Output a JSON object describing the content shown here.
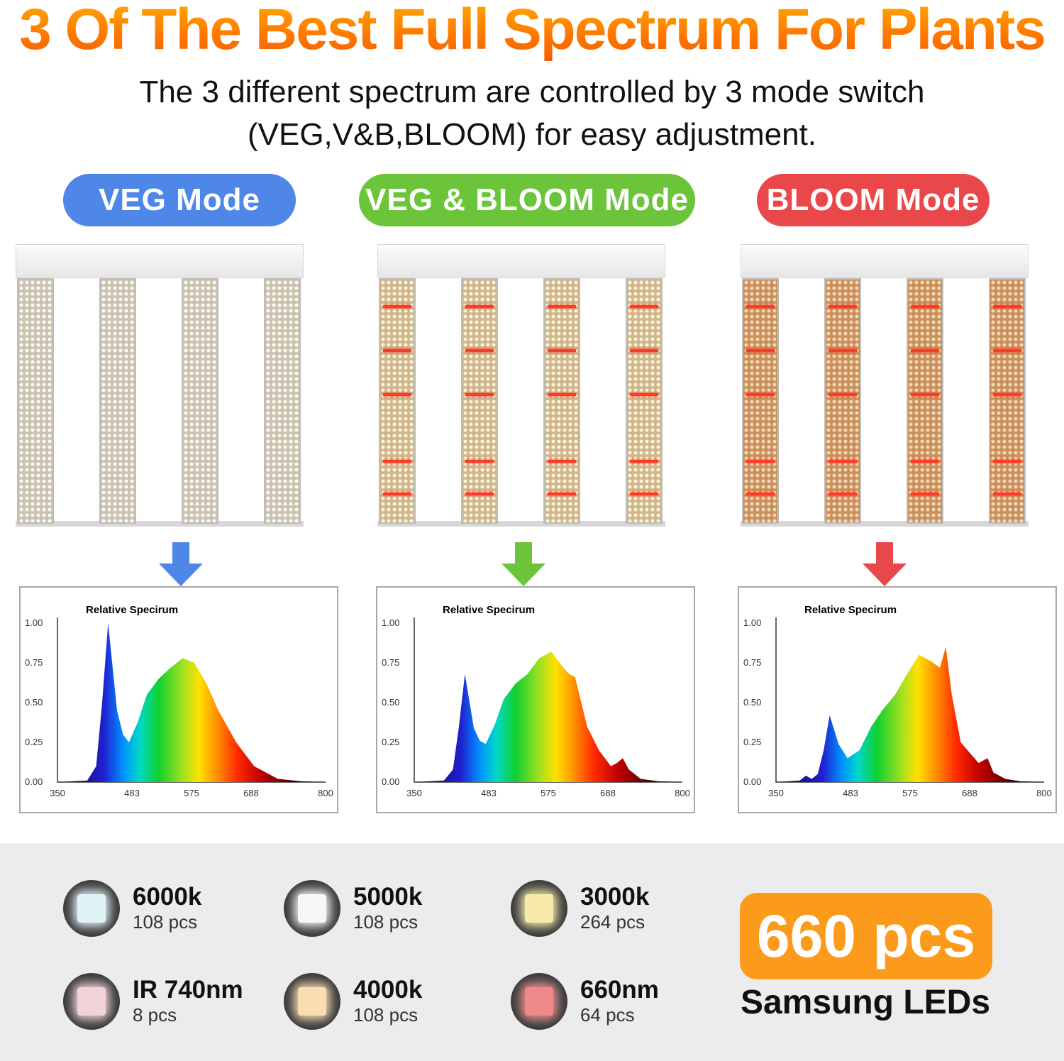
{
  "title": "3 Of The Best Full Spectrum For Plants",
  "subtitle": {
    "line1": "The 3 different spectrum are controlled by 3 mode switch",
    "line2": "(VEG,V&B,BLOOM) for easy adjustment."
  },
  "modes": [
    {
      "label": "VEG Mode",
      "color": "#4f87e8"
    },
    {
      "label": "VEG & BLOOM Mode",
      "color": "#6cc43a"
    },
    {
      "label": "BLOOM Mode",
      "color": "#e9474a"
    }
  ],
  "chart_data": [
    {
      "type": "area",
      "title": "Relative Specirum",
      "x_ticks": [
        "350",
        "483",
        "575",
        "688",
        "800"
      ],
      "y_ticks": [
        "1.00",
        "0.75",
        "0.50",
        "0.25",
        "0.00"
      ],
      "xlim": [
        350,
        800
      ],
      "ylim": [
        0,
        1
      ],
      "series": [
        {
          "x": [
            350,
            400,
            415,
            425,
            435,
            450,
            460,
            470,
            485,
            500,
            520,
            540,
            560,
            580,
            600,
            620,
            650,
            680,
            720,
            760,
            800
          ],
          "y": [
            0,
            0.01,
            0.1,
            0.5,
            1.0,
            0.45,
            0.3,
            0.25,
            0.38,
            0.55,
            0.65,
            0.72,
            0.78,
            0.75,
            0.62,
            0.45,
            0.25,
            0.1,
            0.02,
            0.005,
            0
          ]
        }
      ]
    },
    {
      "type": "area",
      "title": "Relative Specirum",
      "x_ticks": [
        "350",
        "483",
        "575",
        "688",
        "800"
      ],
      "y_ticks": [
        "1.00",
        "0.75",
        "0.50",
        "0.25",
        "0.00"
      ],
      "xlim": [
        350,
        800
      ],
      "ylim": [
        0,
        1
      ],
      "series": [
        {
          "x": [
            350,
            400,
            415,
            425,
            435,
            450,
            460,
            470,
            485,
            500,
            520,
            540,
            560,
            580,
            600,
            610,
            620,
            640,
            660,
            680,
            690,
            700,
            710,
            730,
            760,
            800
          ],
          "y": [
            0,
            0.01,
            0.08,
            0.35,
            0.68,
            0.34,
            0.26,
            0.24,
            0.36,
            0.52,
            0.62,
            0.68,
            0.78,
            0.82,
            0.72,
            0.68,
            0.66,
            0.35,
            0.2,
            0.1,
            0.12,
            0.15,
            0.08,
            0.02,
            0.005,
            0
          ]
        }
      ]
    },
    {
      "type": "area",
      "title": "Relative Specirum",
      "x_ticks": [
        "350",
        "483",
        "575",
        "688",
        "800"
      ],
      "y_ticks": [
        "1.00",
        "0.75",
        "0.50",
        "0.25",
        "0.00"
      ],
      "xlim": [
        350,
        800
      ],
      "ylim": [
        0,
        1
      ],
      "series": [
        {
          "x": [
            350,
            390,
            400,
            410,
            420,
            430,
            440,
            455,
            470,
            490,
            510,
            530,
            550,
            570,
            590,
            610,
            625,
            635,
            645,
            660,
            690,
            705,
            715,
            735,
            760,
            800
          ],
          "y": [
            0,
            0.01,
            0.04,
            0.02,
            0.05,
            0.2,
            0.42,
            0.24,
            0.15,
            0.2,
            0.35,
            0.46,
            0.55,
            0.68,
            0.8,
            0.76,
            0.72,
            0.85,
            0.55,
            0.25,
            0.12,
            0.15,
            0.06,
            0.02,
            0.005,
            0
          ]
        }
      ]
    }
  ],
  "leds": [
    {
      "name": "6000k",
      "count": "108 pcs",
      "icon": "led-chip-6000k-icon",
      "chip_color": "#dff3f7"
    },
    {
      "name": "5000k",
      "count": "108 pcs",
      "icon": "led-chip-5000k-icon",
      "chip_color": "#f6f8f5"
    },
    {
      "name": "3000k",
      "count": "264 pcs",
      "icon": "led-chip-3000k-icon",
      "chip_color": "#f8eba8"
    },
    {
      "name": "IR 740nm",
      "count": "8 pcs",
      "icon": "led-chip-ir-740nm-icon",
      "chip_color": "#f1d2d6"
    },
    {
      "name": "4000k",
      "count": "108 pcs",
      "icon": "led-chip-4000k-icon",
      "chip_color": "#f9ddb0"
    },
    {
      "name": "660nm",
      "count": "64 pcs",
      "icon": "led-chip-660nm-icon",
      "chip_color": "#f08a8a"
    }
  ],
  "total": {
    "count": "660 pcs",
    "label": "Samsung LEDs",
    "color": "#fb9a1b"
  }
}
